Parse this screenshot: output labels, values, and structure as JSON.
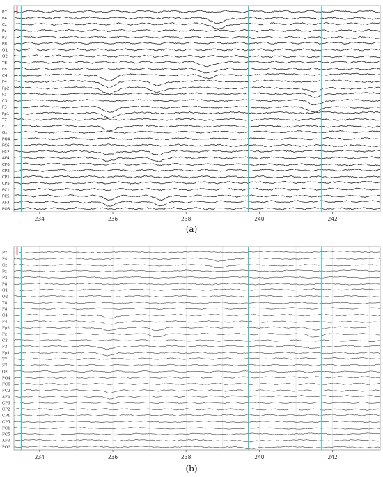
{
  "chart_data": [
    {
      "type": "line",
      "panel": "a",
      "caption": "(a)",
      "channels": [
        "P7",
        "P4",
        "Cz",
        "Pz",
        "P3",
        "P8",
        "O1",
        "O2",
        "T8",
        "F8",
        "C4",
        "F4",
        "Fp2",
        "Fz",
        "C3",
        "F3",
        "Fp1",
        "T7",
        "F7",
        "Oz",
        "PO4",
        "FC6",
        "FC2",
        "AF4",
        "CP6",
        "CP2",
        "CP1",
        "CP5",
        "FC1",
        "FC5",
        "AF3",
        "PO3"
      ],
      "x_ticks": [
        "234",
        "236",
        "238",
        "240",
        "242"
      ],
      "xlim": [
        233.3,
        243.3
      ],
      "markers": [
        233.5,
        239.7,
        241.7
      ],
      "grid": false,
      "colors": {
        "trace": "#222222",
        "marker": "#3cc8c8",
        "start": "#d02030"
      },
      "events": [
        {
          "channels": [
            "Fp2",
            "F4",
            "C4"
          ],
          "t": 235.9,
          "amp": -1.6
        },
        {
          "channels": [
            "Fp2",
            "F4"
          ],
          "t": 237.2,
          "amp": -1.1
        },
        {
          "channels": [
            "Fp2",
            "Fz",
            "F3",
            "C3"
          ],
          "t": 241.5,
          "amp": -1.2
        },
        {
          "channels": [
            "Fp1",
            "F7",
            "F3"
          ],
          "t": 235.9,
          "amp": -1.4
        },
        {
          "channels": [
            "AF4",
            "FC2"
          ],
          "t": 235.9,
          "amp": -1.0
        },
        {
          "channels": [
            "AF4",
            "FC2"
          ],
          "t": 237.2,
          "amp": -0.9
        },
        {
          "channels": [
            "AF3",
            "FC5"
          ],
          "t": 235.9,
          "amp": -1.0
        },
        {
          "channels": [
            "AF3",
            "FC5"
          ],
          "t": 237.3,
          "amp": -0.9
        },
        {
          "channels": [
            "P4",
            "Cz"
          ],
          "t": 238.9,
          "amp": -1.5
        },
        {
          "channels": [
            "F8",
            "C4",
            "T8"
          ],
          "t": 238.6,
          "amp": -1.3
        }
      ]
    },
    {
      "type": "line",
      "panel": "b",
      "caption": "(b)",
      "channels": [
        "P7",
        "P4",
        "Cz",
        "Pz",
        "P3",
        "P8",
        "O1",
        "O2",
        "T8",
        "F8",
        "C4",
        "F4",
        "Fp2",
        "Fz",
        "C3",
        "F3",
        "Fp1",
        "T7",
        "F7",
        "Oz",
        "PO4",
        "FC6",
        "FC2",
        "AF4",
        "CP6",
        "CP2",
        "CP1",
        "CP5",
        "FC1",
        "FC5",
        "AF3",
        "PO3"
      ],
      "x_ticks": [
        "234",
        "236",
        "238",
        "240",
        "242"
      ],
      "xlim": [
        233.3,
        243.3
      ],
      "markers": [
        233.5,
        239.7,
        241.7
      ],
      "grid": true,
      "colors": {
        "trace": "#444444",
        "marker": "#3cc8c8",
        "start": "#d02030"
      },
      "events": [
        {
          "channels": [
            "Fp2",
            "F4",
            "C4"
          ],
          "t": 235.9,
          "amp": -1.2
        },
        {
          "channels": [
            "Fp2",
            "Fz"
          ],
          "t": 237.2,
          "amp": -0.9
        },
        {
          "channels": [
            "Fp2",
            "Fz",
            "F3"
          ],
          "t": 241.5,
          "amp": -0.9
        },
        {
          "channels": [
            "Fp1",
            "F3"
          ],
          "t": 235.9,
          "amp": -1.0
        },
        {
          "channels": [
            "AF4",
            "FC2"
          ],
          "t": 235.9,
          "amp": -0.7
        },
        {
          "channels": [
            "P4",
            "Cz"
          ],
          "t": 238.9,
          "amp": -0.8
        },
        {
          "channels": [
            "AF3",
            "PO3"
          ],
          "t": 239.7,
          "amp": -0.7
        }
      ]
    }
  ]
}
